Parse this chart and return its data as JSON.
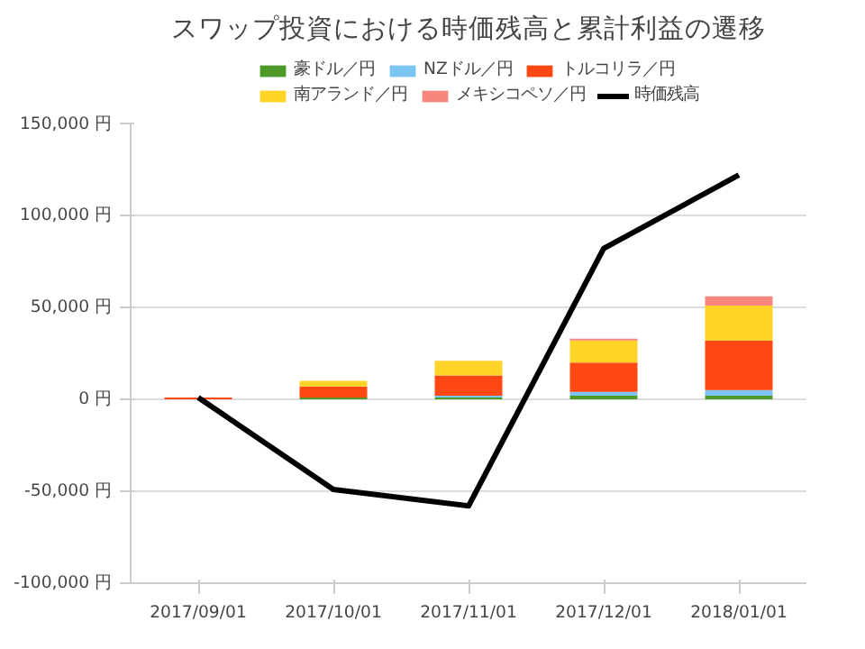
{
  "chart_data": {
    "type": "bar",
    "stacked": true,
    "title": "スワップ投資における時価残高と累計利益の遷移",
    "categories": [
      "2017/09/01",
      "2017/10/01",
      "2017/11/01",
      "2017/12/01",
      "2018/01/01"
    ],
    "series": [
      {
        "name": "豪ドル／円",
        "color": "#4e9a28",
        "values": [
          0,
          1000,
          1000,
          2000,
          2000
        ]
      },
      {
        "name": "NZドル／円",
        "color": "#7cc4f4",
        "values": [
          0,
          0,
          1000,
          2000,
          3000
        ]
      },
      {
        "name": "トルコリラ／円",
        "color": "#ff4813",
        "values": [
          1000,
          6000,
          11000,
          16000,
          27000
        ]
      },
      {
        "name": "南アランド／円",
        "color": "#ffd426",
        "values": [
          0,
          3000,
          8000,
          12000,
          19000
        ]
      },
      {
        "name": "メキシコペソ／円",
        "color": "#f7867f",
        "values": [
          0,
          0,
          0,
          1000,
          5000
        ]
      },
      {
        "name": "時価残高",
        "type": "line",
        "color": "#000000",
        "values": [
          1000,
          -49000,
          -58000,
          82000,
          122000
        ]
      }
    ],
    "ylim": [
      -100000,
      150000
    ],
    "yticks": [
      {
        "value": -100000,
        "label": "-100,000 円"
      },
      {
        "value": -50000,
        "label": "-50,000 円"
      },
      {
        "value": 0,
        "label": "0 円"
      },
      {
        "value": 50000,
        "label": "50,000 円"
      },
      {
        "value": 100000,
        "label": "100,000 円"
      },
      {
        "value": 150000,
        "label": "150,000 円"
      }
    ],
    "grid": "y",
    "legend": "top"
  }
}
